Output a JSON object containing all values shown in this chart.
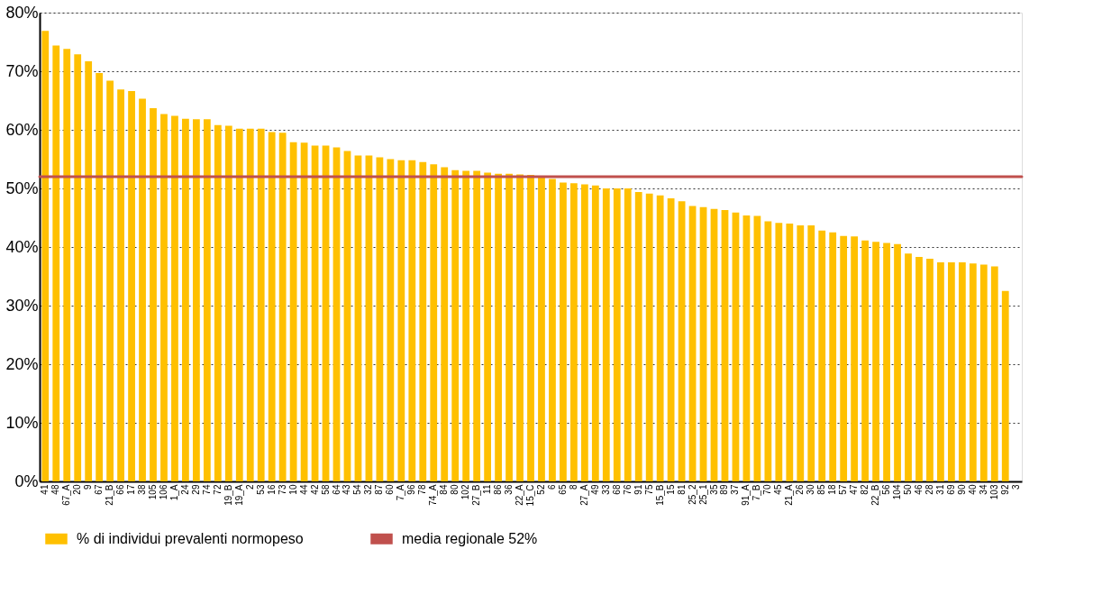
{
  "chart_data": {
    "type": "bar",
    "categories": [
      "41",
      "48",
      "67_A",
      "20",
      "9",
      "67",
      "21_B",
      "66",
      "17",
      "38",
      "105",
      "106",
      "1_A",
      "24",
      "29",
      "74",
      "72",
      "19_B",
      "19_A",
      "2",
      "53",
      "16",
      "73",
      "10",
      "44",
      "42",
      "58",
      "64",
      "43",
      "54",
      "32",
      "87",
      "60",
      "7_A",
      "96",
      "78",
      "74_A",
      "84",
      "80",
      "102",
      "27_B",
      "11",
      "86",
      "36",
      "22_A",
      "15_C",
      "52",
      "6",
      "65",
      "8",
      "27_A",
      "49",
      "33",
      "68",
      "76",
      "91",
      "75",
      "15_B",
      "15",
      "81",
      "25_2",
      "25_1",
      "35",
      "89",
      "37",
      "91_A",
      "7_B",
      "70",
      "45",
      "21_A",
      "26",
      "30",
      "85",
      "18",
      "57",
      "47",
      "82",
      "22_B",
      "56",
      "104",
      "50",
      "46",
      "28",
      "31",
      "69",
      "90",
      "40",
      "34",
      "103",
      "92",
      "3"
    ],
    "series": [
      {
        "name": "% di individui prevalenti normopeso",
        "color": "#ffc000",
        "values": [
          76.9,
          74.4,
          73.8,
          72.9,
          71.7,
          69.7,
          68.4,
          66.9,
          66.6,
          65.3,
          63.7,
          62.7,
          62.4,
          61.9,
          61.8,
          61.8,
          60.8,
          60.7,
          60.2,
          60.2,
          60.2,
          59.6,
          59.5,
          57.9,
          57.8,
          57.3,
          57.3,
          57.0,
          56.4,
          55.6,
          55.6,
          55.3,
          55.0,
          54.8,
          54.8,
          54.5,
          54.1,
          53.6,
          53.1,
          53.0,
          53.0,
          52.7,
          52.5,
          52.5,
          52.4,
          52.3,
          52.0,
          51.6,
          51.0,
          50.9,
          50.7,
          50.5,
          50.0,
          50.0,
          50.0,
          49.4,
          49.1,
          48.8,
          48.3,
          47.8,
          47.0,
          46.8,
          46.5,
          46.3,
          45.9,
          45.4,
          45.3,
          44.4,
          44.1,
          44.0,
          43.7,
          43.7,
          42.8,
          42.5,
          41.9,
          41.8,
          41.1,
          40.9,
          40.7,
          40.5,
          38.9,
          38.3,
          38.0,
          37.4,
          37.4,
          37.4,
          37.2,
          37.0,
          36.7,
          32.5,
          null
        ]
      }
    ],
    "ref_lines": [
      {
        "axis": "y",
        "value": 52,
        "label": "media regionale 52%",
        "color": "#c0504d"
      }
    ],
    "ylim": [
      0,
      80
    ],
    "yticks": [
      {
        "value": 0,
        "label": "0%"
      },
      {
        "value": 10,
        "label": "10%"
      },
      {
        "value": 20,
        "label": "20%"
      },
      {
        "value": 30,
        "label": "30%"
      },
      {
        "value": 40,
        "label": "40%"
      },
      {
        "value": 50,
        "label": "50%"
      },
      {
        "value": 60,
        "label": "60%"
      },
      {
        "value": 70,
        "label": "70%"
      },
      {
        "value": 80,
        "label": "80%"
      }
    ],
    "grid": "y",
    "legend": "bottom"
  }
}
